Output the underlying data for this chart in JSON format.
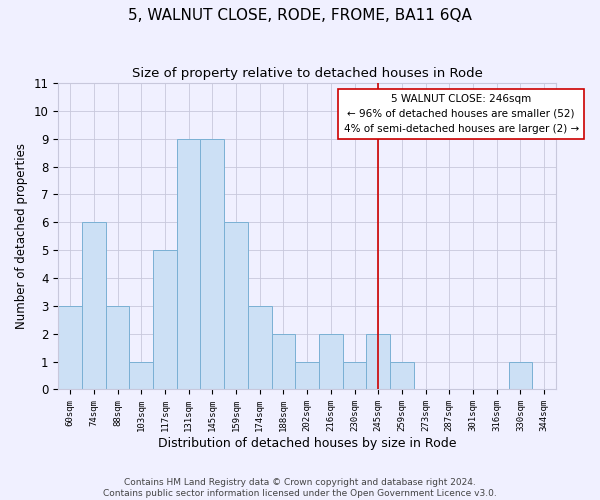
{
  "title": "5, WALNUT CLOSE, RODE, FROME, BA11 6QA",
  "subtitle": "Size of property relative to detached houses in Rode",
  "xlabel": "Distribution of detached houses by size in Rode",
  "ylabel": "Number of detached properties",
  "bar_labels": [
    "60sqm",
    "74sqm",
    "88sqm",
    "103sqm",
    "117sqm",
    "131sqm",
    "145sqm",
    "159sqm",
    "174sqm",
    "188sqm",
    "202sqm",
    "216sqm",
    "230sqm",
    "245sqm",
    "259sqm",
    "273sqm",
    "287sqm",
    "301sqm",
    "316sqm",
    "330sqm",
    "344sqm"
  ],
  "bar_values": [
    3,
    6,
    3,
    1,
    5,
    9,
    9,
    6,
    3,
    2,
    1,
    2,
    1,
    2,
    1,
    0,
    0,
    0,
    0,
    1,
    0
  ],
  "bar_color": "#cce0f5",
  "bar_edge_color": "#7ab0d4",
  "vline_index": 13,
  "vline_color": "#cc0000",
  "annotation_text": "5 WALNUT CLOSE: 246sqm\n← 96% of detached houses are smaller (52)\n4% of semi-detached houses are larger (2) →",
  "annotation_box_color": "#ffffff",
  "annotation_box_edge_color": "#cc0000",
  "ylim": [
    0,
    11
  ],
  "yticks": [
    0,
    1,
    2,
    3,
    4,
    5,
    6,
    7,
    8,
    9,
    10,
    11
  ],
  "footer": "Contains HM Land Registry data © Crown copyright and database right 2024.\nContains public sector information licensed under the Open Government Licence v3.0.",
  "title_fontsize": 11,
  "subtitle_fontsize": 9.5,
  "xlabel_fontsize": 9,
  "ylabel_fontsize": 8.5,
  "footer_fontsize": 6.5,
  "annotation_fontsize": 7.5,
  "grid_color": "#c8c8dc",
  "bg_color": "#f0f0ff"
}
